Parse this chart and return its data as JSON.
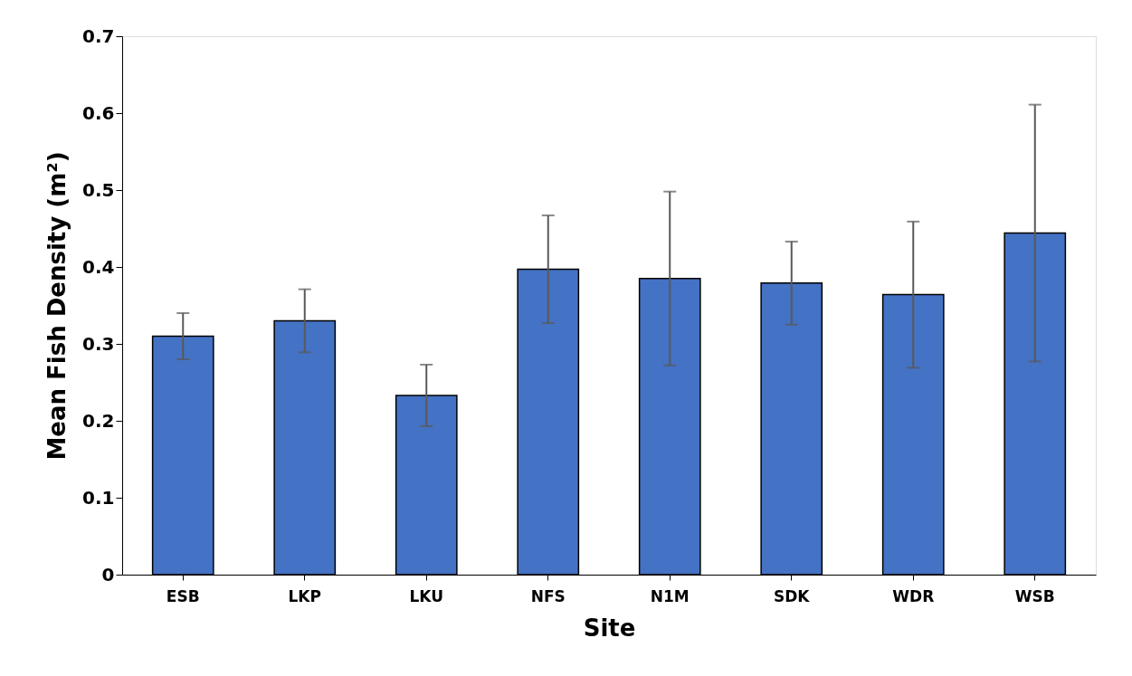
{
  "chart_data": {
    "type": "bar",
    "xlabel": "Site",
    "ylabel": "Mean Fish Density (m²)",
    "categories": [
      "ESB",
      "LKP",
      "LKU",
      "NFS",
      "N1M",
      "SDK",
      "WDR",
      "WSB"
    ],
    "values": [
      0.31,
      0.33,
      0.233,
      0.397,
      0.385,
      0.379,
      0.364,
      0.444
    ],
    "errors": [
      0.03,
      0.041,
      0.04,
      0.07,
      0.113,
      0.054,
      0.095,
      0.167
    ],
    "color": "#4472c4",
    "ylim": [
      0,
      0.7
    ],
    "yticks": [
      0,
      0.1,
      0.2,
      0.3,
      0.4,
      0.5,
      0.6,
      0.7
    ],
    "grid": false
  }
}
